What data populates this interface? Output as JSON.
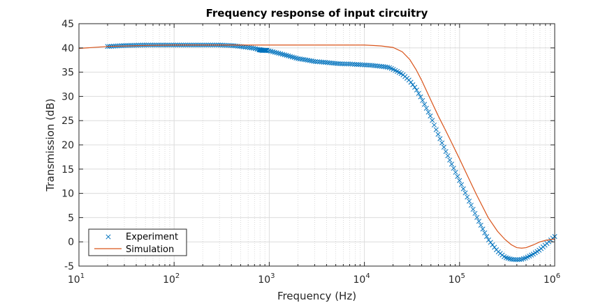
{
  "chart_data": {
    "type": "line",
    "title": "Frequency response of input circuitry",
    "xlabel": "Frequency (Hz)",
    "ylabel": "Transmission (dB)",
    "xscale": "log",
    "xlim": [
      10,
      1000000
    ],
    "ylim": [
      -5,
      45
    ],
    "x_ticks": [
      {
        "base": "10",
        "exp": "1"
      },
      {
        "base": "10",
        "exp": "2"
      },
      {
        "base": "10",
        "exp": "3"
      },
      {
        "base": "10",
        "exp": "4"
      },
      {
        "base": "10",
        "exp": "5"
      },
      {
        "base": "10",
        "exp": "6"
      }
    ],
    "y_ticks": [
      "-5",
      "0",
      "5",
      "10",
      "15",
      "20",
      "25",
      "30",
      "35",
      "40",
      "45"
    ],
    "grid": true,
    "minor_grid": true,
    "legend_position": "bottom-left",
    "series": [
      {
        "name": "Experiment",
        "style": "marker-x",
        "color": "#0072BD",
        "x": [
          20,
          30,
          50,
          80,
          100,
          150,
          200,
          300,
          400,
          500,
          600,
          700,
          800,
          850,
          900,
          950,
          1000,
          1200,
          1500,
          2000,
          2500,
          3000,
          4000,
          5000,
          6000,
          7000,
          8000,
          10000,
          12000,
          15000,
          18000,
          20000,
          25000,
          30000,
          35000,
          40000,
          50000,
          60000,
          70000,
          80000,
          90000,
          100000,
          120000,
          150000,
          180000,
          200000,
          250000,
          300000,
          350000,
          400000,
          450000,
          500000,
          600000,
          700000,
          800000,
          900000,
          1000000
        ],
        "y": [
          40.3,
          40.5,
          40.6,
          40.6,
          40.6,
          40.6,
          40.6,
          40.6,
          40.5,
          40.3,
          40.1,
          39.9,
          39.6,
          39.5,
          39.5,
          39.5,
          39.4,
          39.0,
          38.5,
          37.8,
          37.5,
          37.2,
          37.0,
          36.8,
          36.7,
          36.7,
          36.6,
          36.5,
          36.4,
          36.2,
          36.0,
          35.6,
          34.6,
          33.2,
          31.5,
          29.5,
          25.7,
          22.0,
          19.1,
          16.6,
          14.5,
          12.6,
          9.3,
          5.3,
          2.2,
          0.5,
          -1.9,
          -3.2,
          -3.6,
          -3.7,
          -3.6,
          -3.3,
          -2.5,
          -1.6,
          -0.6,
          0.3,
          1.1
        ]
      },
      {
        "name": "Simulation",
        "style": "line",
        "color": "#D95319",
        "x": [
          10,
          20,
          50,
          100,
          200,
          500,
          1000,
          2000,
          5000,
          10000,
          15000,
          20000,
          25000,
          30000,
          35000,
          40000,
          50000,
          60000,
          70000,
          80000,
          100000,
          120000,
          150000,
          200000,
          250000,
          300000,
          350000,
          400000,
          450000,
          500000,
          600000,
          700000,
          800000,
          1000000
        ],
        "y": [
          39.9,
          40.3,
          40.5,
          40.6,
          40.6,
          40.6,
          40.6,
          40.6,
          40.6,
          40.6,
          40.4,
          40.1,
          39.2,
          37.6,
          35.5,
          33.3,
          29.2,
          25.9,
          23.3,
          21.0,
          17.1,
          13.8,
          9.8,
          5.0,
          2.2,
          0.5,
          -0.6,
          -1.2,
          -1.3,
          -1.2,
          -0.6,
          0.0,
          0.3,
          0.6
        ]
      }
    ]
  }
}
